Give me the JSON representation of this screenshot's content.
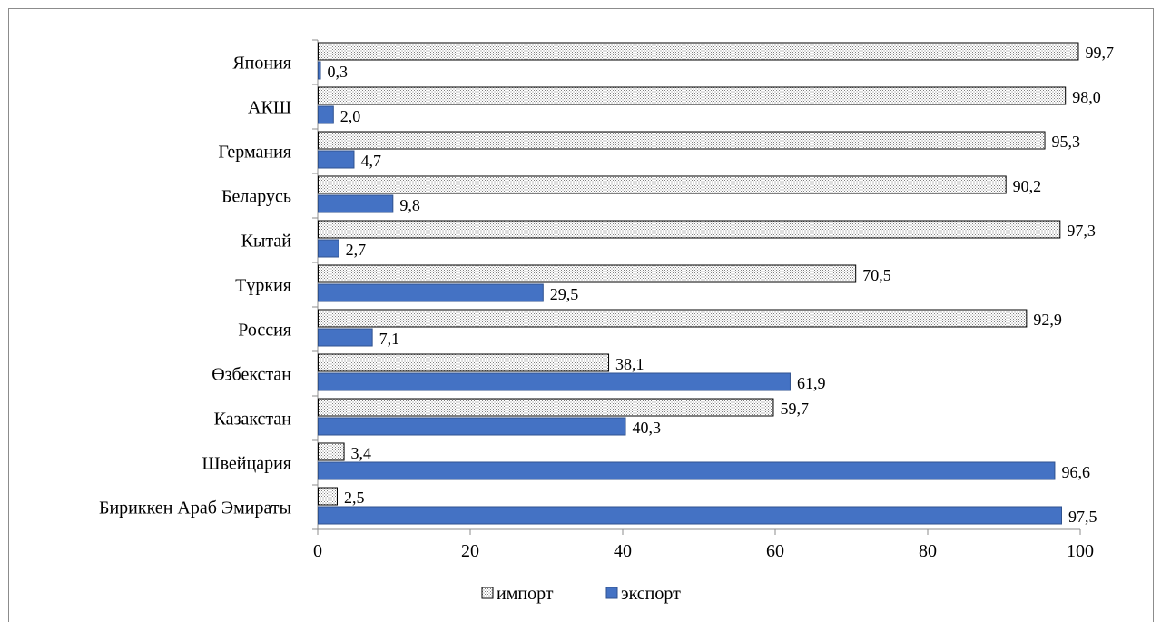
{
  "chart_data": {
    "type": "bar",
    "orientation": "horizontal",
    "categories": [
      "Япония",
      "АКШ",
      "Германия",
      "Беларусь",
      "Кытай",
      "Түркия",
      "Россия",
      "Өзбекстан",
      "Казакстан",
      "Швейцария",
      "Бириккен Араб  Эмираты"
    ],
    "series": [
      {
        "name": "импорт",
        "values": [
          99.7,
          98.0,
          95.3,
          90.2,
          97.3,
          70.5,
          92.9,
          38.1,
          59.7,
          3.4,
          2.5
        ],
        "labels": [
          "99,7",
          "98,0",
          "95,3",
          "90,2",
          "97,3",
          "70,5",
          "92,9",
          "38,1",
          "59,7",
          "3,4",
          "2,5"
        ],
        "color": "#f2f2f2",
        "pattern": "dotted"
      },
      {
        "name": "экспорт",
        "values": [
          0.3,
          2.0,
          4.7,
          9.8,
          2.7,
          29.5,
          7.1,
          61.9,
          40.3,
          96.6,
          97.5
        ],
        "labels": [
          "0,3",
          "2,0",
          "4,7",
          "9,8",
          "2,7",
          "29,5",
          "7,1",
          "61,9",
          "40,3",
          "96,6",
          "97,5"
        ],
        "color": "#4472c4"
      }
    ],
    "xlim": [
      0,
      100
    ],
    "xticks": [
      "0",
      "20",
      "40",
      "60",
      "80",
      "100"
    ],
    "legend": "bottom",
    "grid": false
  }
}
